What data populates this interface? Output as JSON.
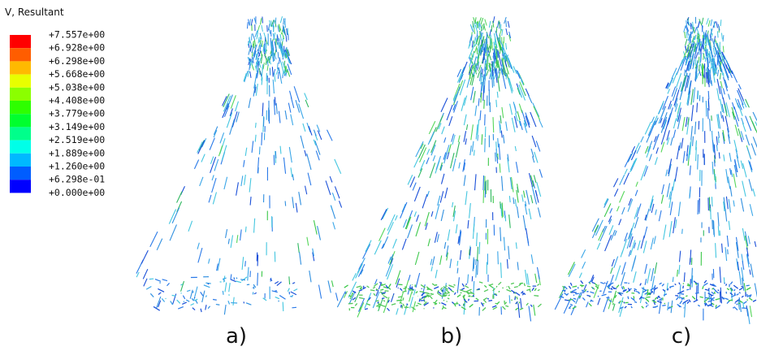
{
  "legend": {
    "title": "V, Resultant",
    "labels": [
      "+7.557e+00",
      "+6.928e+00",
      "+6.298e+00",
      "+5.668e+00",
      "+5.038e+00",
      "+4.408e+00",
      "+3.779e+00",
      "+3.149e+00",
      "+2.519e+00",
      "+1.889e+00",
      "+1.260e+00",
      "+6.298e-01",
      "+0.000e+00"
    ],
    "colors": [
      "#ff0000",
      "#ff5d00",
      "#ffb900",
      "#e8ff00",
      "#8bff00",
      "#2eff00",
      "#00ff2e",
      "#00ff8b",
      "#00ffe8",
      "#00b9ff",
      "#005dff",
      "#0000ff"
    ]
  },
  "panels": [
    {
      "label": "a)"
    },
    {
      "label": "b)"
    },
    {
      "label": "c)"
    }
  ]
}
